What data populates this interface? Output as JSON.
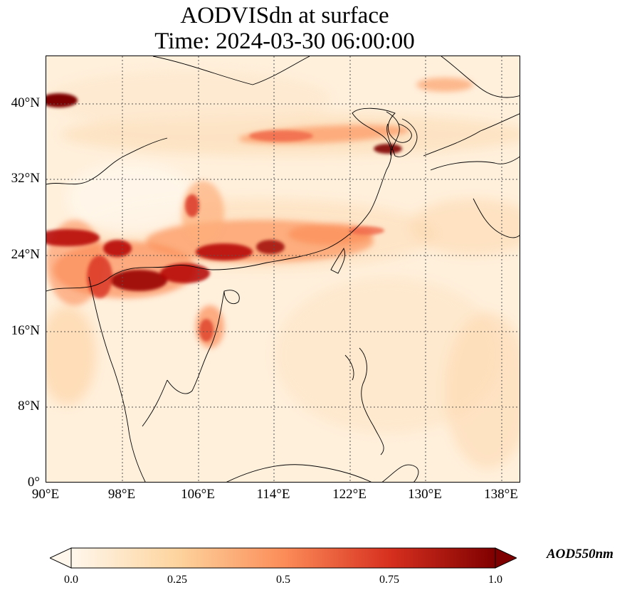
{
  "title": {
    "line1": "AODVISdn at surface",
    "line2": "Time: 2024-03-30 06:00:00"
  },
  "map": {
    "lat_ticks": [
      "40°N",
      "32°N",
      "24°N",
      "16°N",
      "8°N",
      "0°"
    ],
    "lon_ticks": [
      "90°E",
      "98°E",
      "106°E",
      "114°E",
      "122°E",
      "130°E",
      "138°E"
    ],
    "colormap": "OrRd",
    "colors": [
      "#fff7ec",
      "#fdd49e",
      "#fc8d59",
      "#d7301f",
      "#7f0000"
    ]
  },
  "colorbar": {
    "ticks": [
      "0.0",
      "0.25",
      "0.5",
      "0.75",
      "1.0"
    ],
    "label": "AOD550nm",
    "extend": "both"
  }
}
